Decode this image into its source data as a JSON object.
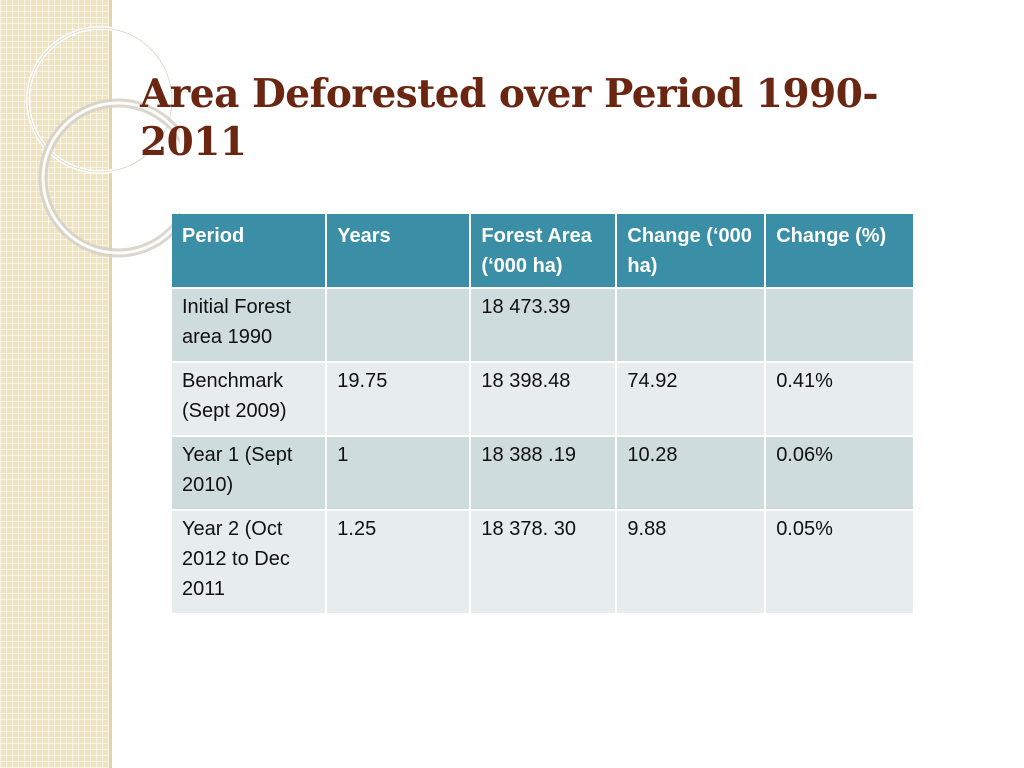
{
  "slide": {
    "title": "Area Deforested over Period 1990-2011"
  },
  "theme": {
    "title_color": "#6b2612",
    "header_bg": "#3a8fa6",
    "row_odd_bg": "#cfdcde",
    "row_even_bg": "#e7eced",
    "strip_color": "#efe4c2"
  },
  "table": {
    "headers": [
      "Period",
      "Years",
      "Forest Area (‘000 ha)",
      "Change (‘000 ha)",
      "Change (%)"
    ],
    "rows": [
      [
        "Initial Forest area 1990",
        "",
        "18 473.39",
        "",
        ""
      ],
      [
        "Benchmark (Sept 2009)",
        "19.75",
        "18 398.48",
        "74.92",
        "0.41%"
      ],
      [
        "Year 1 (Sept 2010)",
        "1",
        "18 388 .19",
        "10.28",
        "0.06%"
      ],
      [
        "Year 2 (Oct 2012 to Dec 2011",
        "1.25",
        "18 378. 30",
        "9.88",
        "0.05%"
      ]
    ]
  }
}
